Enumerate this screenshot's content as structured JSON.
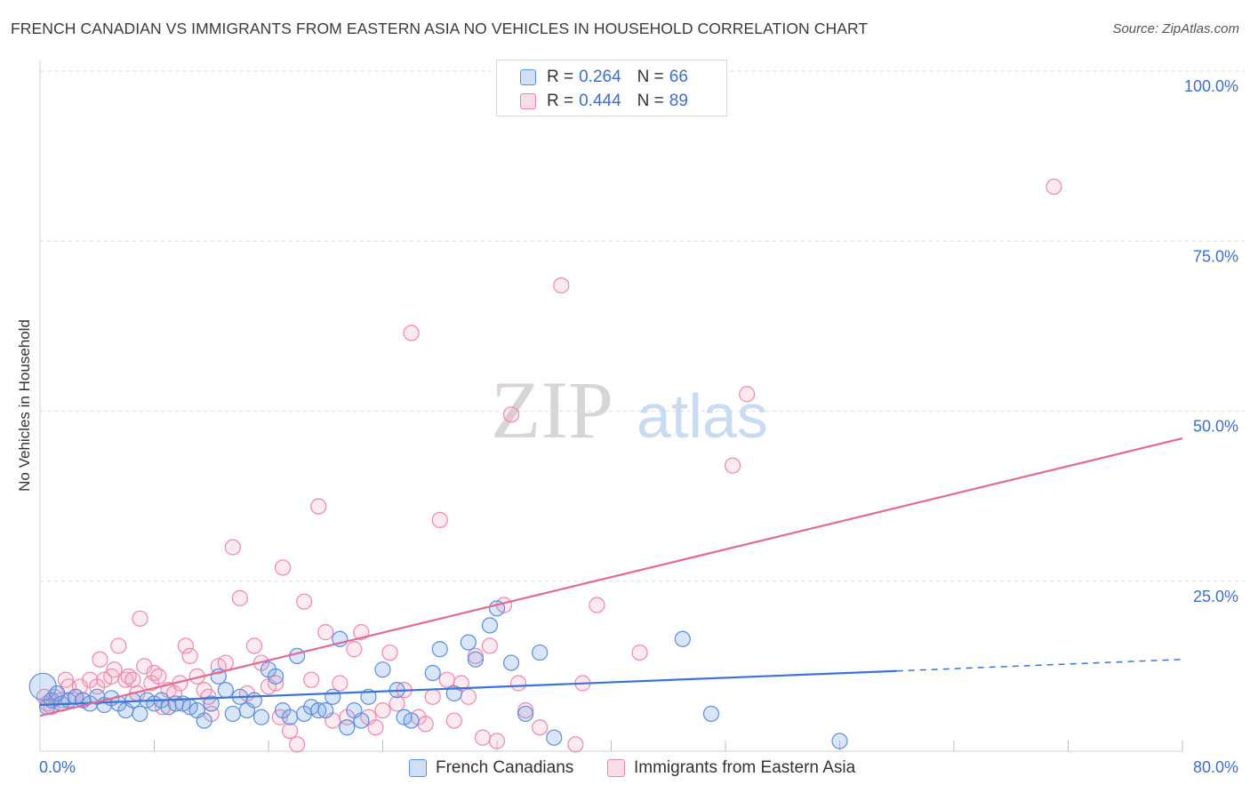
{
  "title": "FRENCH CANADIAN VS IMMIGRANTS FROM EASTERN ASIA NO VEHICLES IN HOUSEHOLD CORRELATION CHART",
  "source": "Source: ZipAtlas.com",
  "watermark": {
    "zip": "ZIP",
    "atlas": "atlas"
  },
  "legend": {
    "rows": [
      {
        "r_label": "R =",
        "r_value": "0.264",
        "n_label": "N =",
        "n_value": "66",
        "color": "#5b8ee0"
      },
      {
        "r_label": "R =",
        "r_value": "0.444",
        "n_label": "N =",
        "n_value": "89",
        "color": "#ee88aa"
      }
    ]
  },
  "bottom_legend": [
    "French Canadians",
    "Immigrants from Eastern Asia"
  ],
  "colors": {
    "blue_stroke": "#5b8ee0",
    "blue_fill": "rgba(120,160,230,0.28)",
    "blue_line": "#3a74d4",
    "pink_stroke": "#ee88aa",
    "pink_fill": "rgba(245,170,195,0.25)",
    "pink_line": "#e26a93",
    "tick_text": "#3a6fd0",
    "grid": "#dcdcdc"
  },
  "chart_data": {
    "type": "scatter",
    "title": "FRENCH CANADIAN VS IMMIGRANTS FROM EASTERN ASIA NO VEHICLES IN HOUSEHOLD CORRELATION CHART",
    "xlabel": "",
    "ylabel": "No Vehicles in Household",
    "xlim": [
      0,
      80
    ],
    "ylim": [
      0,
      100
    ],
    "x_tick_labels": [
      "0.0%",
      "80.0%"
    ],
    "y_tick_labels": [
      "25.0%",
      "50.0%",
      "75.0%",
      "100.0%"
    ],
    "y_ticks": [
      25,
      50,
      75,
      100
    ],
    "grid": true,
    "legend_position": "top-center",
    "series": [
      {
        "name": "French Canadians",
        "R": 0.264,
        "N": 66,
        "trend": {
          "x": [
            0,
            60
          ],
          "y": [
            6.8,
            11.8
          ],
          "dashed_to": {
            "x": 80,
            "y": 13.5
          }
        },
        "points": [
          [
            0.2,
            9.5
          ],
          [
            0.5,
            6.5
          ],
          [
            0.8,
            7.5
          ],
          [
            1.2,
            8.5
          ],
          [
            1.5,
            7.0
          ],
          [
            2.0,
            7.5
          ],
          [
            2.5,
            8.0
          ],
          [
            3.0,
            7.5
          ],
          [
            3.5,
            7.0
          ],
          [
            4.0,
            8.0
          ],
          [
            4.5,
            6.8
          ],
          [
            5.0,
            7.8
          ],
          [
            5.5,
            7.0
          ],
          [
            6.0,
            6.0
          ],
          [
            6.5,
            7.5
          ],
          [
            7.0,
            5.5
          ],
          [
            7.5,
            7.5
          ],
          [
            8.0,
            7.0
          ],
          [
            8.5,
            7.5
          ],
          [
            9.0,
            6.5
          ],
          [
            9.5,
            7.0
          ],
          [
            10.0,
            7.0
          ],
          [
            10.5,
            6.5
          ],
          [
            11.0,
            6.0
          ],
          [
            11.5,
            4.5
          ],
          [
            12.0,
            7.0
          ],
          [
            12.5,
            11.0
          ],
          [
            13.0,
            9.0
          ],
          [
            13.5,
            5.5
          ],
          [
            14.0,
            8.0
          ],
          [
            14.5,
            6.0
          ],
          [
            15.0,
            7.5
          ],
          [
            15.5,
            5.0
          ],
          [
            16.0,
            12.0
          ],
          [
            16.5,
            11.0
          ],
          [
            17.0,
            6.0
          ],
          [
            17.5,
            5.0
          ],
          [
            18.0,
            14.0
          ],
          [
            18.5,
            5.5
          ],
          [
            19.0,
            6.5
          ],
          [
            19.5,
            6.0
          ],
          [
            20.0,
            6.0
          ],
          [
            20.5,
            8.0
          ],
          [
            21.0,
            16.5
          ],
          [
            21.5,
            3.5
          ],
          [
            22.0,
            6.0
          ],
          [
            22.5,
            4.5
          ],
          [
            23.0,
            8.0
          ],
          [
            24.0,
            12.0
          ],
          [
            25.0,
            9.0
          ],
          [
            25.5,
            5.0
          ],
          [
            26.0,
            4.5
          ],
          [
            27.5,
            11.5
          ],
          [
            28.0,
            15.0
          ],
          [
            29.0,
            8.5
          ],
          [
            30.0,
            16.0
          ],
          [
            30.5,
            13.5
          ],
          [
            31.5,
            18.5
          ],
          [
            32.0,
            21.0
          ],
          [
            33.0,
            13.0
          ],
          [
            34.0,
            5.5
          ],
          [
            35.0,
            14.5
          ],
          [
            36.0,
            2.0
          ],
          [
            45.0,
            16.5
          ],
          [
            47.0,
            5.5
          ],
          [
            56.0,
            1.5
          ]
        ]
      },
      {
        "name": "Immigrants from Eastern Asia",
        "R": 0.444,
        "N": 89,
        "trend": {
          "x": [
            0,
            80
          ],
          "y": [
            5.2,
            46.0
          ]
        },
        "points": [
          [
            0.3,
            8.0
          ],
          [
            0.5,
            7.0
          ],
          [
            0.8,
            6.5
          ],
          [
            1.0,
            8.0
          ],
          [
            1.5,
            7.5
          ],
          [
            1.8,
            10.5
          ],
          [
            2.0,
            9.5
          ],
          [
            2.5,
            8.0
          ],
          [
            2.8,
            9.5
          ],
          [
            3.0,
            7.5
          ],
          [
            3.5,
            10.5
          ],
          [
            4.0,
            9.5
          ],
          [
            4.2,
            13.5
          ],
          [
            4.5,
            10.5
          ],
          [
            5.0,
            11.0
          ],
          [
            5.2,
            12.0
          ],
          [
            5.5,
            15.5
          ],
          [
            6.0,
            10.5
          ],
          [
            6.2,
            11.0
          ],
          [
            6.5,
            10.5
          ],
          [
            6.8,
            8.5
          ],
          [
            7.0,
            19.5
          ],
          [
            7.3,
            12.5
          ],
          [
            7.8,
            10.0
          ],
          [
            8.0,
            11.5
          ],
          [
            8.3,
            11.0
          ],
          [
            8.6,
            6.5
          ],
          [
            9.0,
            9.0
          ],
          [
            9.4,
            8.5
          ],
          [
            9.8,
            10.0
          ],
          [
            10.2,
            15.5
          ],
          [
            10.5,
            14.0
          ],
          [
            11.0,
            11.0
          ],
          [
            11.5,
            9.0
          ],
          [
            11.8,
            8.0
          ],
          [
            12.0,
            5.5
          ],
          [
            12.5,
            12.5
          ],
          [
            13.0,
            13.0
          ],
          [
            13.5,
            30.0
          ],
          [
            14.0,
            22.5
          ],
          [
            14.5,
            8.5
          ],
          [
            15.0,
            15.5
          ],
          [
            15.5,
            13.0
          ],
          [
            16.0,
            9.5
          ],
          [
            16.5,
            10.0
          ],
          [
            16.8,
            5.0
          ],
          [
            17.0,
            27.0
          ],
          [
            17.5,
            3.0
          ],
          [
            18.0,
            1.0
          ],
          [
            18.5,
            22.0
          ],
          [
            19.0,
            10.5
          ],
          [
            19.5,
            36.0
          ],
          [
            20.0,
            17.5
          ],
          [
            20.5,
            4.5
          ],
          [
            21.0,
            10.0
          ],
          [
            21.5,
            5.0
          ],
          [
            22.0,
            15.0
          ],
          [
            22.5,
            17.5
          ],
          [
            23.0,
            5.0
          ],
          [
            23.5,
            3.5
          ],
          [
            24.0,
            6.0
          ],
          [
            24.5,
            14.5
          ],
          [
            25.0,
            7.0
          ],
          [
            25.5,
            9.0
          ],
          [
            26.0,
            61.5
          ],
          [
            26.5,
            5.0
          ],
          [
            27.0,
            4.0
          ],
          [
            27.5,
            8.0
          ],
          [
            28.0,
            34.0
          ],
          [
            28.5,
            10.5
          ],
          [
            29.0,
            4.5
          ],
          [
            29.5,
            10.0
          ],
          [
            30.0,
            8.0
          ],
          [
            30.5,
            14.0
          ],
          [
            31.0,
            2.0
          ],
          [
            31.5,
            15.5
          ],
          [
            32.0,
            1.5
          ],
          [
            32.5,
            21.5
          ],
          [
            33.0,
            49.5
          ],
          [
            33.5,
            10.0
          ],
          [
            34.0,
            6.0
          ],
          [
            35.0,
            3.5
          ],
          [
            36.5,
            68.5
          ],
          [
            37.5,
            1.0
          ],
          [
            38.0,
            10.0
          ],
          [
            39.0,
            21.5
          ],
          [
            42.0,
            14.5
          ],
          [
            48.5,
            42.0
          ],
          [
            49.5,
            52.5
          ],
          [
            71.0,
            83.0
          ]
        ]
      }
    ]
  }
}
